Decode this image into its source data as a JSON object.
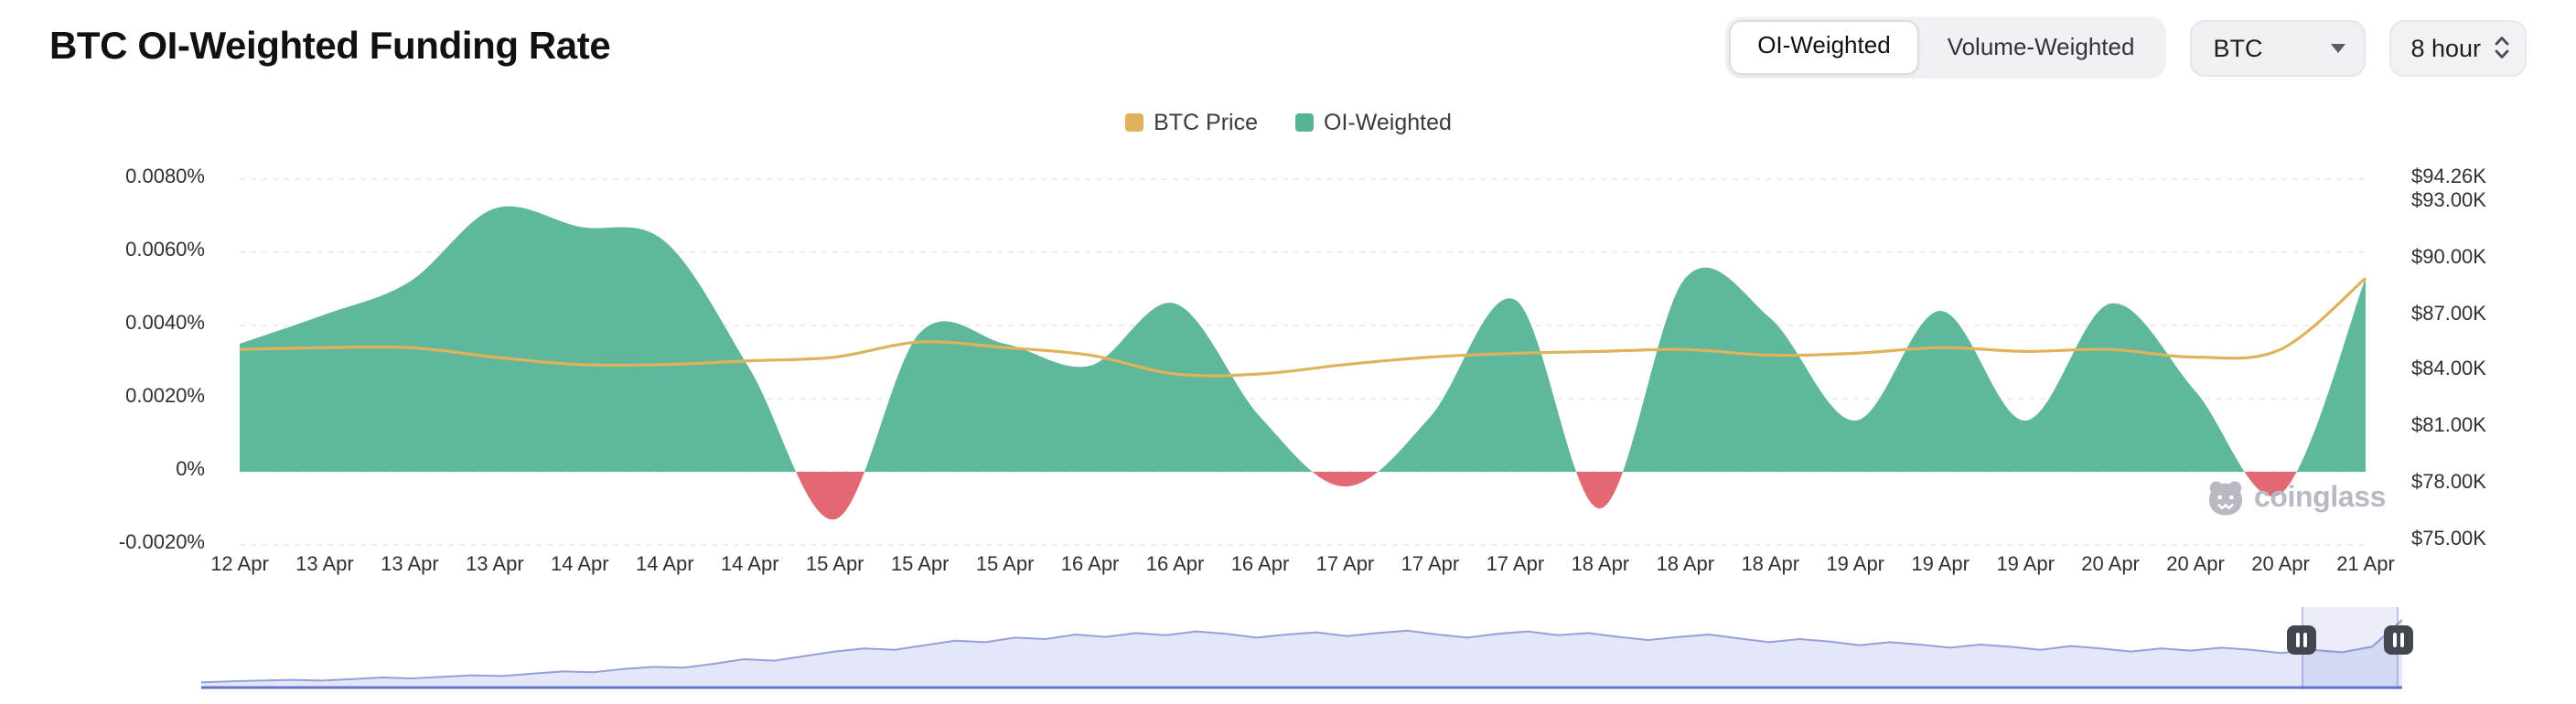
{
  "header": {
    "title": "BTC OI-Weighted Funding Rate",
    "toggle": {
      "options": [
        "OI-Weighted",
        "Volume-Weighted"
      ],
      "active": "OI-Weighted"
    },
    "symbol_select": {
      "value": "BTC"
    },
    "interval_select": {
      "value": "8 hour"
    }
  },
  "legend": [
    {
      "label": "BTC Price",
      "color": "#E1B25C"
    },
    {
      "label": "OI-Weighted",
      "color": "#57B497"
    }
  ],
  "watermark": "coinglass",
  "chart_data": {
    "type": "area+line",
    "title": "BTC OI-Weighted Funding Rate",
    "x_labels": [
      "12 Apr",
      "13 Apr",
      "13 Apr",
      "13 Apr",
      "14 Apr",
      "14 Apr",
      "14 Apr",
      "15 Apr",
      "15 Apr",
      "15 Apr",
      "16 Apr",
      "16 Apr",
      "16 Apr",
      "17 Apr",
      "17 Apr",
      "17 Apr",
      "18 Apr",
      "18 Apr",
      "18 Apr",
      "19 Apr",
      "19 Apr",
      "19 Apr",
      "20 Apr",
      "20 Apr",
      "20 Apr",
      "21 Apr"
    ],
    "series": [
      {
        "name": "OI-Weighted",
        "type": "area",
        "axis": "left",
        "unit": "%",
        "color_positive": "#57B497",
        "color_negative": "#E0606B",
        "values": [
          0.0035,
          0.0043,
          0.0052,
          0.0072,
          0.0067,
          0.0063,
          0.0028,
          -0.0013,
          0.0038,
          0.0035,
          0.0029,
          0.0046,
          0.0015,
          -0.0004,
          0.0015,
          0.0047,
          -0.001,
          0.0053,
          0.0042,
          0.0014,
          0.0044,
          0.0014,
          0.0046,
          0.0022,
          -0.0006,
          0.0053
        ]
      },
      {
        "name": "BTC Price",
        "type": "line",
        "axis": "right",
        "unit": "$K",
        "color": "#E1B25C",
        "values": [
          85.2,
          85.3,
          85.3,
          84.8,
          84.4,
          84.4,
          84.6,
          84.8,
          85.6,
          85.3,
          84.9,
          83.9,
          83.9,
          84.4,
          84.8,
          85.0,
          85.1,
          85.2,
          84.9,
          85.0,
          85.3,
          85.1,
          85.2,
          84.8,
          85.2,
          89.0
        ]
      }
    ],
    "left_axis": {
      "ticks": [
        "0.0080%",
        "0.0060%",
        "0.0040%",
        "0.0020%",
        "0%",
        "-0.0020%"
      ],
      "tick_values": [
        0.008,
        0.006,
        0.004,
        0.002,
        0,
        -0.002
      ],
      "min": -0.002,
      "max": 0.008
    },
    "right_axis": {
      "ticks": [
        "$94.26K",
        "$93.00K",
        "$90.00K",
        "$87.00K",
        "$84.00K",
        "$81.00K",
        "$78.00K",
        "$75.00K"
      ],
      "tick_values": [
        94.26,
        93,
        90,
        87,
        84,
        81,
        78,
        75
      ],
      "min": 75,
      "max": 94.26
    },
    "grid": "horizontal-dashed",
    "legend_position": "top-center",
    "navigator": {
      "fill_color": "#e4e7f8",
      "line_color": "#95a0d9",
      "baseline_color": "#6673cd",
      "values": [
        0.07,
        0.08,
        0.09,
        0.1,
        0.09,
        0.11,
        0.13,
        0.12,
        0.14,
        0.16,
        0.15,
        0.18,
        0.21,
        0.2,
        0.24,
        0.27,
        0.26,
        0.31,
        0.37,
        0.35,
        0.41,
        0.47,
        0.51,
        0.49,
        0.55,
        0.61,
        0.59,
        0.65,
        0.63,
        0.69,
        0.66,
        0.71,
        0.68,
        0.73,
        0.7,
        0.65,
        0.69,
        0.72,
        0.67,
        0.71,
        0.74,
        0.69,
        0.65,
        0.7,
        0.73,
        0.68,
        0.71,
        0.66,
        0.62,
        0.66,
        0.69,
        0.64,
        0.59,
        0.63,
        0.6,
        0.55,
        0.59,
        0.56,
        0.52,
        0.56,
        0.53,
        0.49,
        0.54,
        0.51,
        0.47,
        0.51,
        0.48,
        0.52,
        0.49,
        0.45,
        0.49,
        0.46,
        0.53,
        0.88
      ],
      "selection": [
        0.954,
        0.998
      ]
    }
  }
}
